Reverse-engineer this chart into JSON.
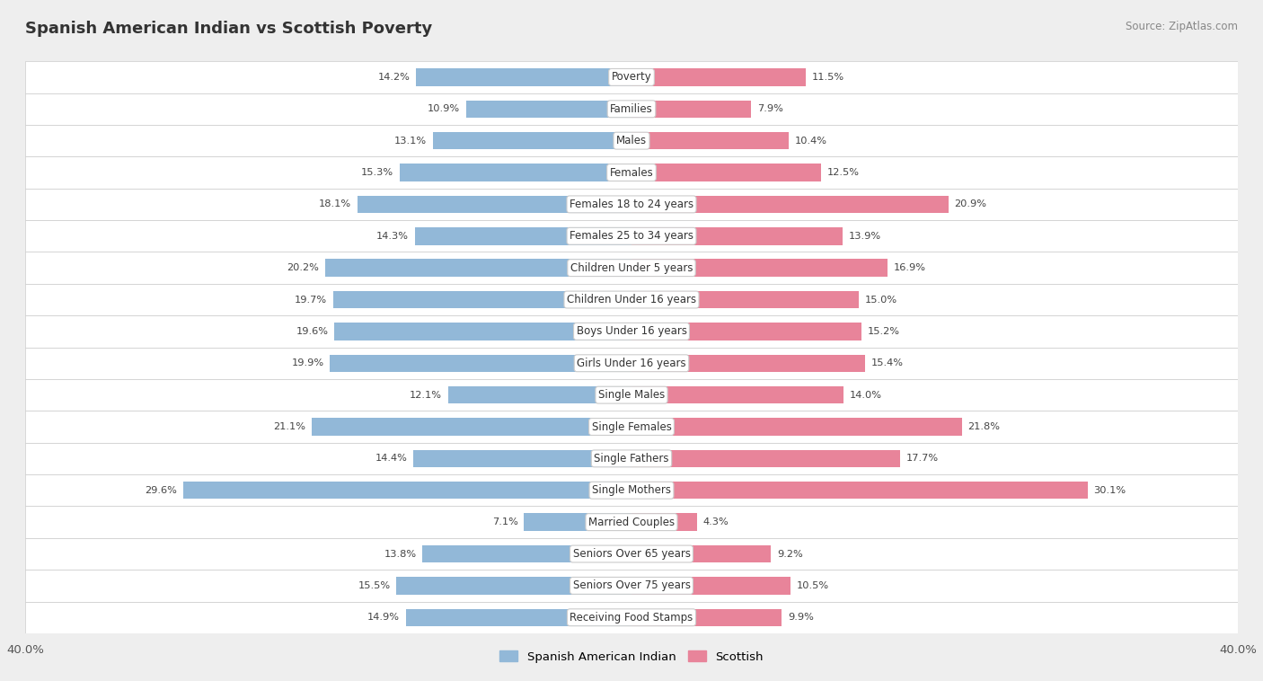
{
  "title": "Spanish American Indian vs Scottish Poverty",
  "source": "Source: ZipAtlas.com",
  "categories": [
    "Poverty",
    "Families",
    "Males",
    "Females",
    "Females 18 to 24 years",
    "Females 25 to 34 years",
    "Children Under 5 years",
    "Children Under 16 years",
    "Boys Under 16 years",
    "Girls Under 16 years",
    "Single Males",
    "Single Females",
    "Single Fathers",
    "Single Mothers",
    "Married Couples",
    "Seniors Over 65 years",
    "Seniors Over 75 years",
    "Receiving Food Stamps"
  ],
  "left_values": [
    14.2,
    10.9,
    13.1,
    15.3,
    18.1,
    14.3,
    20.2,
    19.7,
    19.6,
    19.9,
    12.1,
    21.1,
    14.4,
    29.6,
    7.1,
    13.8,
    15.5,
    14.9
  ],
  "right_values": [
    11.5,
    7.9,
    10.4,
    12.5,
    20.9,
    13.9,
    16.9,
    15.0,
    15.2,
    15.4,
    14.0,
    21.8,
    17.7,
    30.1,
    4.3,
    9.2,
    10.5,
    9.9
  ],
  "left_color": "#92b8d8",
  "right_color": "#e8849a",
  "label_left": "Spanish American Indian",
  "label_right": "Scottish",
  "axis_max": 40.0,
  "background_color": "#eeeeee",
  "row_color_odd": "#e8e8e8",
  "row_color_even": "#f5f5f5"
}
